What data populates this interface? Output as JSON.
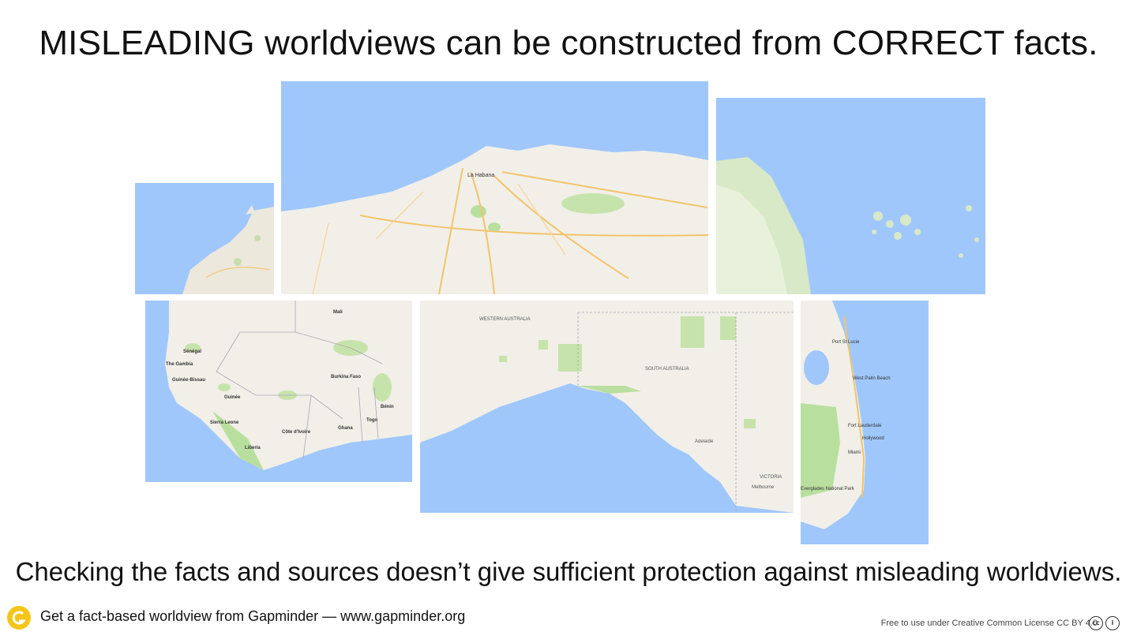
{
  "slide": {
    "title": "MISLEADING worldviews can be constructed from CORRECT facts.",
    "subtitle": "Checking the facts and sources doesn’t give sufficient protection against misleading worldviews."
  },
  "maps": [
    {
      "id": "cape-verde",
      "labels": []
    },
    {
      "id": "cuba",
      "labels": [
        "La Habana"
      ]
    },
    {
      "id": "baltic",
      "labels": []
    },
    {
      "id": "west-africa",
      "labels": [
        "Mali",
        "Sénégal",
        "The Gambia",
        "Guinée-Bissau",
        "Guinée",
        "Sierra Leone",
        "Liberia",
        "Côte d'Ivoire",
        "Burkina Faso",
        "Ghana",
        "Togo",
        "Bénin"
      ]
    },
    {
      "id": "australia",
      "labels": [
        "WESTERN AUSTRALIA",
        "SOUTH AUSTRALIA",
        "VICTORIA",
        "Adelaide",
        "Melbourne"
      ]
    },
    {
      "id": "florida",
      "labels": [
        "Port St Lucie",
        "West Palm Beach",
        "Fort Lauderdale",
        "Hollywood",
        "Miami",
        "Everglades National Park"
      ]
    }
  ],
  "colors": {
    "water": "#9fc7fb",
    "land": "#f1efe8",
    "park": "#b9df9f",
    "road": "#f2c46b",
    "text": "#111111"
  },
  "footer": {
    "logo_icon": "gapminder-logo-icon",
    "tagline": "Get a fact-based worldview from Gapminder — www.gapminder.org",
    "license": "Free to use under Creative Common License CC BY 4.0",
    "cc_icon": "cc-icon",
    "by_icon": "by-attribution-icon"
  }
}
